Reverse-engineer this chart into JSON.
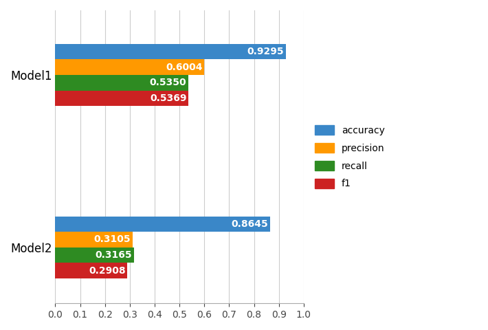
{
  "models": [
    "Model1",
    "Model2"
  ],
  "metrics": [
    "accuracy",
    "precision",
    "recall",
    "f1"
  ],
  "values": {
    "Model1": [
      0.9295,
      0.6004,
      0.535,
      0.5369
    ],
    "Model2": [
      0.8645,
      0.3105,
      0.3165,
      0.2908
    ]
  },
  "colors": {
    "accuracy": "#3a87c8",
    "precision": "#ff9900",
    "recall": "#2e8b22",
    "f1": "#cc2222"
  },
  "xlim": [
    0.0,
    1.0
  ],
  "xticks": [
    0.0,
    0.1,
    0.2,
    0.3,
    0.4,
    0.5,
    0.6,
    0.7,
    0.8,
    0.9,
    1.0
  ],
  "bar_height": 0.18,
  "background_color": "#ffffff",
  "grid_color": "#cccccc",
  "label_fontsize": 10,
  "tick_fontsize": 10,
  "ylabel_fontsize": 12
}
